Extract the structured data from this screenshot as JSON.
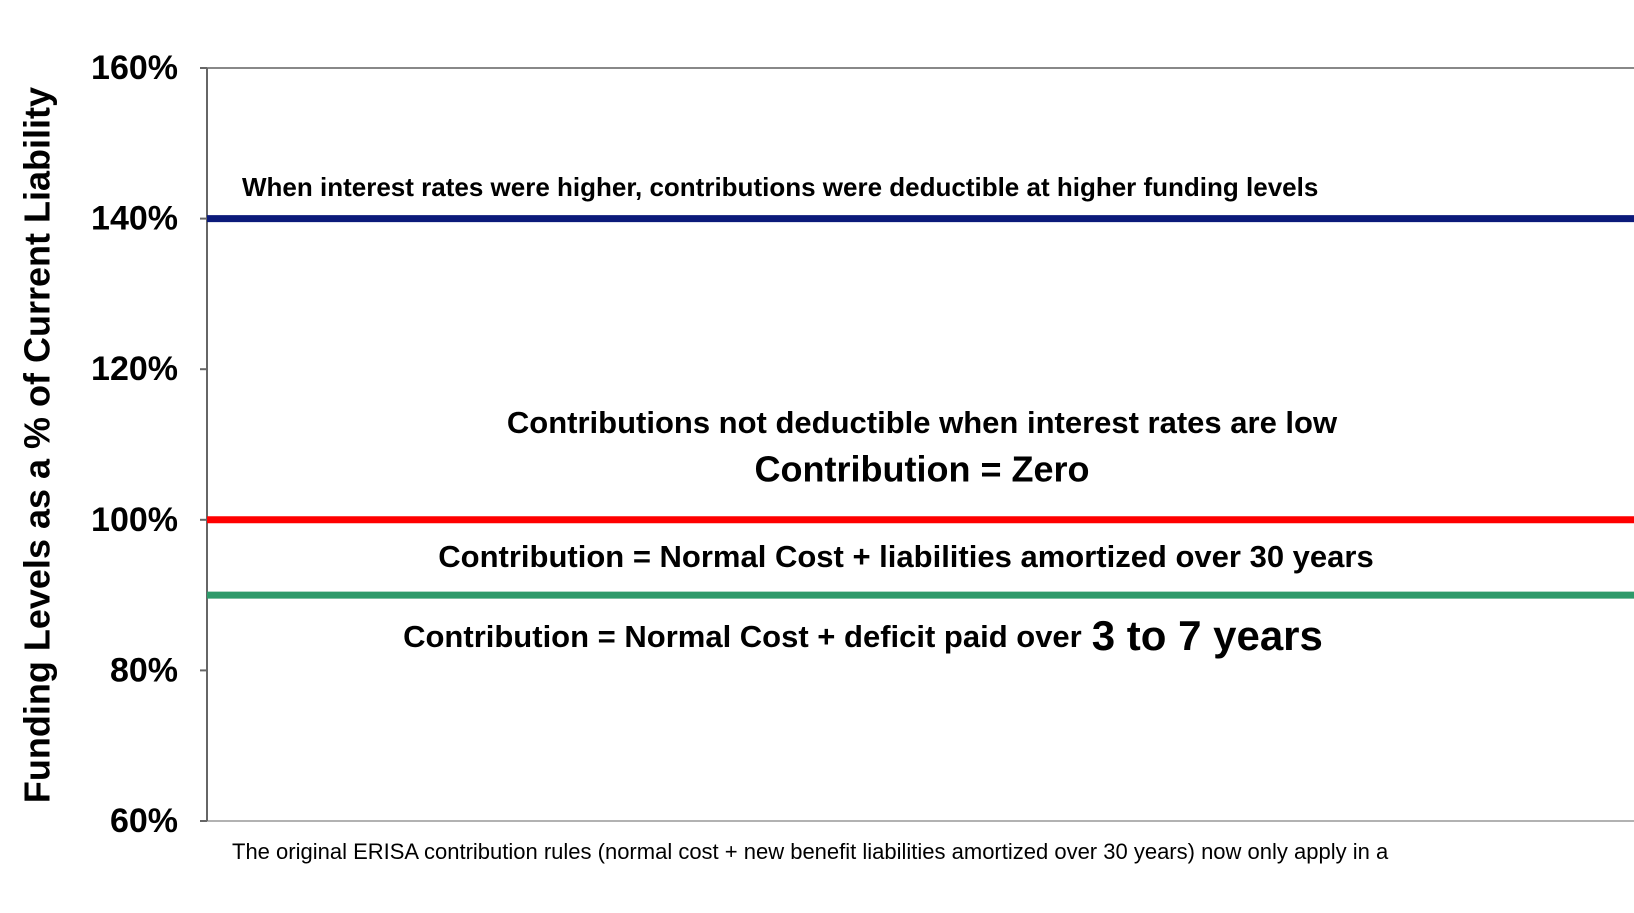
{
  "chart_data": {
    "type": "reference-lines",
    "ylabel": "Funding Levels as a % of Current Liability",
    "ylim": [
      60,
      160
    ],
    "yticks": [
      {
        "value": 60,
        "label": "60%"
      },
      {
        "value": 80,
        "label": "80%"
      },
      {
        "value": 100,
        "label": "100%"
      },
      {
        "value": 120,
        "label": "120%"
      },
      {
        "value": 140,
        "label": "140%"
      },
      {
        "value": 160,
        "label": "160%"
      }
    ],
    "lines": [
      {
        "value": 140,
        "color": "#0b1a7a"
      },
      {
        "value": 100,
        "color": "#ff0000"
      },
      {
        "value": 90,
        "color": "#2e9a6a"
      }
    ],
    "annotations": [
      "When interest rates were higher, contributions were deductible at higher funding levels",
      "Contributions not deductible when interest rates are low",
      "Contribution = Zero",
      "Contribution = Normal Cost + liabilities amortized over 30 years"
    ],
    "annotation_parts": [
      "Contribution = Normal Cost + deficit paid over",
      "3 to 7 years"
    ],
    "footnote": "The original ERISA contribution rules (normal cost + new benefit liabilities amortized over 30 years) now only apply in a"
  }
}
